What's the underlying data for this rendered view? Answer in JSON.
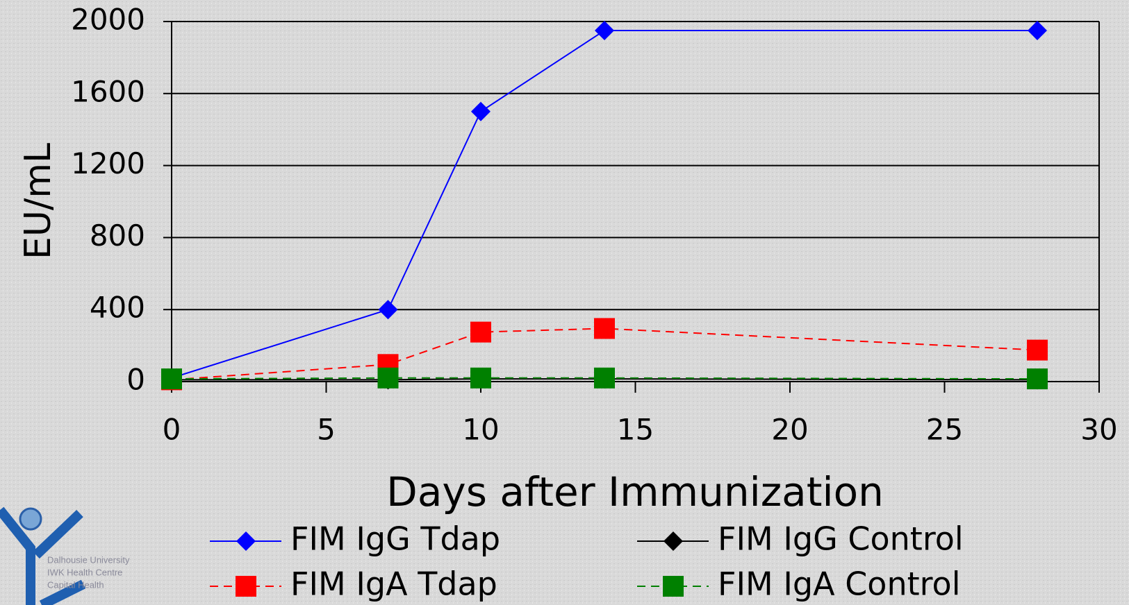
{
  "chart_data": {
    "type": "line",
    "x_label": "Days after Immunization",
    "y_label": "EU/mL",
    "xlim": [
      0,
      30
    ],
    "xticks": [
      0,
      5,
      10,
      15,
      20,
      25,
      30
    ],
    "ylim": [
      0,
      2000
    ],
    "yticks": [
      0,
      400,
      800,
      1200,
      1600,
      2000
    ],
    "grid": true,
    "series": [
      {
        "name": "FIM IgG Tdap",
        "color": "#0000ff",
        "marker": "diamond",
        "line_style": "solid",
        "x": [
          0,
          7,
          10,
          14,
          28
        ],
        "values": [
          20,
          400,
          1500,
          1950,
          1950
        ]
      },
      {
        "name": "FIM IgG Control",
        "color": "#000000",
        "marker": "diamond",
        "line_style": "solid",
        "x": [
          0,
          7,
          10,
          14,
          28
        ],
        "values": [
          10,
          10,
          15,
          15,
          10
        ]
      },
      {
        "name": "FIM IgA Tdap",
        "color": "#ff0000",
        "marker": "square",
        "line_style": "dashed",
        "x": [
          0,
          7,
          10,
          14,
          28
        ],
        "values": [
          10,
          95,
          275,
          295,
          175
        ]
      },
      {
        "name": "FIM IgA Control",
        "color": "#008000",
        "marker": "square",
        "line_style": "dashed",
        "x": [
          0,
          7,
          10,
          14,
          28
        ],
        "values": [
          15,
          20,
          20,
          20,
          15
        ]
      }
    ]
  },
  "logo": {
    "lines": [
      "Dalhousie University",
      "IWK Health Centre",
      "Capital Health"
    ]
  }
}
